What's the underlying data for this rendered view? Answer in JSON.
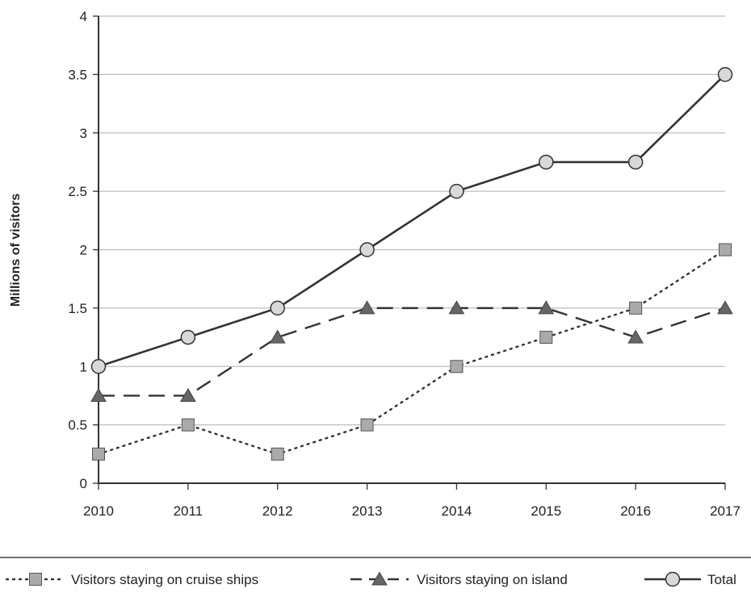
{
  "chart_data": {
    "type": "line",
    "title": "",
    "xlabel": "",
    "ylabel": "Millions of visitors",
    "categories": [
      "2010",
      "2011",
      "2012",
      "2013",
      "2014",
      "2015",
      "2016",
      "2017"
    ],
    "ylim": [
      0,
      4
    ],
    "yticks": [
      "0",
      "0.5",
      "1",
      "1.5",
      "2",
      "2.5",
      "3",
      "3.5",
      "4"
    ],
    "grid": true,
    "legend_position": "bottom",
    "series": [
      {
        "name": "Visitors staying on cruise ships",
        "values": [
          0.25,
          0.5,
          0.25,
          0.5,
          1,
          1.25,
          1.5,
          2
        ],
        "line_style": "dotted",
        "marker": "square"
      },
      {
        "name": "Visitors staying on island",
        "values": [
          0.75,
          0.75,
          1.25,
          1.5,
          1.5,
          1.5,
          1.25,
          1.5
        ],
        "line_style": "dashed",
        "marker": "triangle"
      },
      {
        "name": "Total",
        "values": [
          1,
          1.25,
          1.5,
          2,
          2.5,
          2.75,
          2.75,
          3.5
        ],
        "line_style": "solid",
        "marker": "circle"
      }
    ],
    "colors": {
      "line": "#333333",
      "marker_fill": "#aaaaaa",
      "circle_fill": "#d9d9d9",
      "grid": "#bdbdbd"
    }
  }
}
